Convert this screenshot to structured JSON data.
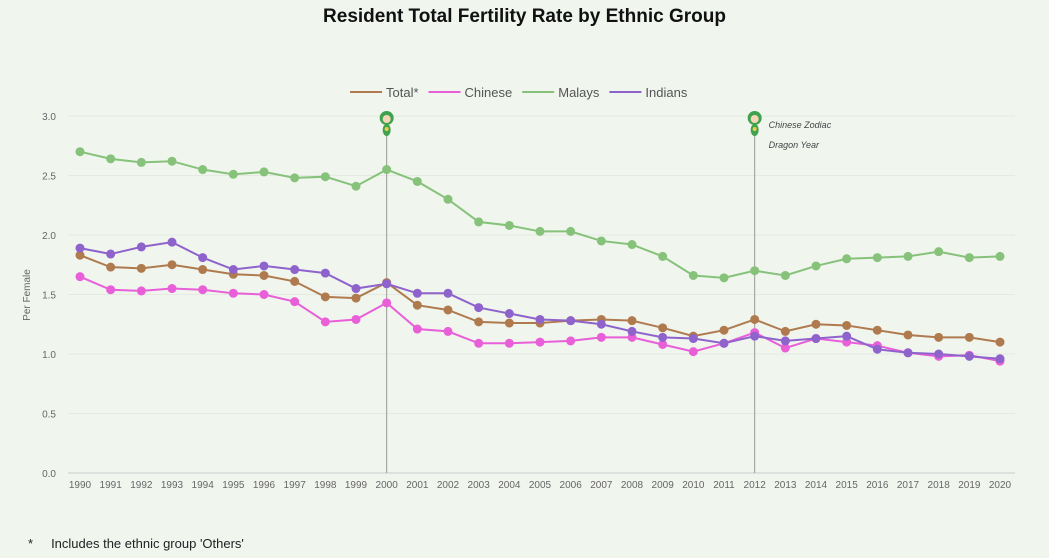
{
  "chart_data": {
    "type": "line",
    "title": "Resident Total Fertility Rate by Ethnic Group",
    "ylabel": "Per Female",
    "xlabel": "",
    "ylim": [
      0,
      3.0
    ],
    "yticks": [
      "0.0",
      "0.5",
      "1.0",
      "1.5",
      "2.0",
      "2.5",
      "3.0"
    ],
    "grid": true,
    "legend_position": "top",
    "x": [
      1990,
      1991,
      1992,
      1993,
      1994,
      1995,
      1996,
      1997,
      1998,
      1999,
      2000,
      2001,
      2002,
      2003,
      2004,
      2005,
      2006,
      2007,
      2008,
      2009,
      2010,
      2011,
      2012,
      2013,
      2014,
      2015,
      2016,
      2017,
      2018,
      2019,
      2020
    ],
    "series": [
      {
        "name": "Total*",
        "color": "#b07a4f",
        "values": [
          1.83,
          1.73,
          1.72,
          1.75,
          1.71,
          1.67,
          1.66,
          1.61,
          1.48,
          1.47,
          1.6,
          1.41,
          1.37,
          1.27,
          1.26,
          1.26,
          1.28,
          1.29,
          1.28,
          1.22,
          1.15,
          1.2,
          1.29,
          1.19,
          1.25,
          1.24,
          1.2,
          1.16,
          1.14,
          1.14,
          1.1
        ]
      },
      {
        "name": "Chinese",
        "color": "#e85fd8",
        "values": [
          1.65,
          1.54,
          1.53,
          1.55,
          1.54,
          1.51,
          1.5,
          1.44,
          1.27,
          1.29,
          1.43,
          1.21,
          1.19,
          1.09,
          1.09,
          1.1,
          1.11,
          1.14,
          1.14,
          1.08,
          1.02,
          1.09,
          1.18,
          1.05,
          1.13,
          1.1,
          1.07,
          1.01,
          0.98,
          0.99,
          0.94
        ]
      },
      {
        "name": "Malays",
        "color": "#86c27a",
        "values": [
          2.7,
          2.64,
          2.61,
          2.62,
          2.55,
          2.51,
          2.53,
          2.48,
          2.49,
          2.41,
          2.55,
          2.45,
          2.3,
          2.11,
          2.08,
          2.03,
          2.03,
          1.95,
          1.92,
          1.82,
          1.66,
          1.64,
          1.7,
          1.66,
          1.74,
          1.8,
          1.81,
          1.82,
          1.86,
          1.81,
          1.82
        ]
      },
      {
        "name": "Indians",
        "color": "#8e63cc",
        "values": [
          1.89,
          1.84,
          1.9,
          1.94,
          1.81,
          1.71,
          1.74,
          1.71,
          1.68,
          1.55,
          1.59,
          1.51,
          1.51,
          1.39,
          1.34,
          1.29,
          1.28,
          1.25,
          1.19,
          1.14,
          1.13,
          1.09,
          1.15,
          1.11,
          1.13,
          1.15,
          1.04,
          1.01,
          1.0,
          0.98,
          0.96
        ]
      }
    ],
    "annotations": [
      {
        "x": 2000,
        "icon": "dragon-icon",
        "text": ""
      },
      {
        "x": 2012,
        "icon": "dragon-icon",
        "text": [
          "Chinese Zodiac",
          "Dragon Year"
        ]
      }
    ]
  },
  "footnote": {
    "marker": "*",
    "text": "Includes the ethnic group 'Others'"
  }
}
